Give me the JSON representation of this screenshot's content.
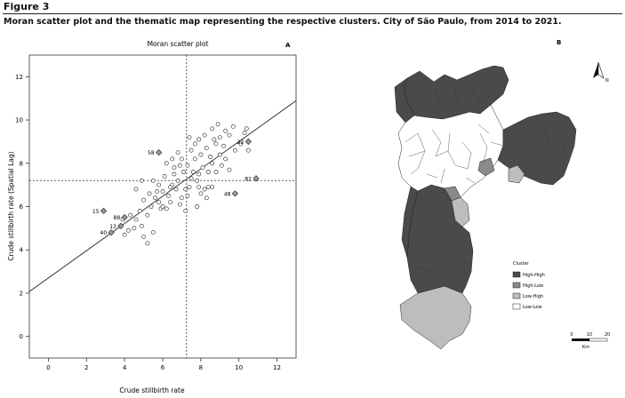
{
  "figure_label": "Figure 3",
  "caption": "Moran scatter plot and the thematic map representing the respective clusters. City of São Paulo, from 2014 to 2021.",
  "chart_data": [
    {
      "type": "scatter",
      "panel": "A",
      "title": "Moran scatter plot",
      "xlabel": "Crude stillbirth rate",
      "ylabel": "Crude stillbirth rate (Spatial Lag)",
      "xlim": [
        -1,
        13
      ],
      "ylim": [
        -1,
        13
      ],
      "xticks": [
        0,
        2,
        4,
        6,
        8,
        10,
        12
      ],
      "yticks": [
        0,
        2,
        4,
        6,
        8,
        10,
        12
      ],
      "mean_x": 7.25,
      "mean_y": 7.2,
      "regression": {
        "intercept": 2.7,
        "slope": 0.63
      },
      "grid": false,
      "labeled_points": [
        {
          "label": "58",
          "x": 5.8,
          "y": 8.5
        },
        {
          "label": "22",
          "x": 10.5,
          "y": 9.0
        },
        {
          "label": "82",
          "x": 10.9,
          "y": 7.3
        },
        {
          "label": "48",
          "x": 9.8,
          "y": 6.6
        },
        {
          "label": "15",
          "x": 2.9,
          "y": 5.8
        },
        {
          "label": "88",
          "x": 4.0,
          "y": 5.5
        },
        {
          "label": "13",
          "x": 3.8,
          "y": 5.1
        },
        {
          "label": "40",
          "x": 3.3,
          "y": 4.8
        }
      ],
      "points": [
        [
          4.0,
          4.7
        ],
        [
          4.2,
          4.9
        ],
        [
          4.5,
          5.0
        ],
        [
          3.9,
          5.4
        ],
        [
          4.3,
          5.6
        ],
        [
          4.6,
          5.4
        ],
        [
          4.9,
          5.1
        ],
        [
          5.0,
          4.6
        ],
        [
          5.2,
          4.3
        ],
        [
          5.5,
          4.8
        ],
        [
          4.8,
          5.8
        ],
        [
          5.2,
          5.6
        ],
        [
          5.4,
          6.0
        ],
        [
          5.0,
          6.3
        ],
        [
          4.6,
          6.8
        ],
        [
          4.9,
          7.2
        ],
        [
          5.3,
          6.6
        ],
        [
          5.6,
          6.4
        ],
        [
          5.8,
          6.2
        ],
        [
          5.9,
          5.9
        ],
        [
          6.2,
          5.9
        ],
        [
          6.4,
          6.2
        ],
        [
          6.3,
          6.5
        ],
        [
          6.0,
          6.7
        ],
        [
          5.8,
          7.0
        ],
        [
          5.5,
          7.2
        ],
        [
          6.1,
          7.4
        ],
        [
          6.5,
          7.0
        ],
        [
          6.7,
          6.8
        ],
        [
          6.8,
          7.2
        ],
        [
          6.9,
          6.1
        ],
        [
          7.0,
          6.4
        ],
        [
          7.2,
          6.8
        ],
        [
          7.3,
          6.5
        ],
        [
          7.4,
          6.9
        ],
        [
          7.5,
          7.3
        ],
        [
          7.6,
          7.6
        ],
        [
          7.8,
          7.2
        ],
        [
          7.9,
          6.9
        ],
        [
          8.0,
          6.6
        ],
        [
          8.2,
          6.8
        ],
        [
          8.4,
          6.9
        ],
        [
          7.1,
          7.6
        ],
        [
          7.3,
          7.9
        ],
        [
          7.0,
          8.2
        ],
        [
          6.8,
          8.5
        ],
        [
          7.5,
          8.6
        ],
        [
          7.7,
          8.9
        ],
        [
          8.0,
          8.4
        ],
        [
          8.3,
          8.7
        ],
        [
          8.5,
          8.3
        ],
        [
          8.8,
          8.9
        ],
        [
          9.0,
          9.2
        ],
        [
          9.2,
          8.8
        ],
        [
          9.3,
          9.5
        ],
        [
          8.9,
          9.8
        ],
        [
          8.6,
          9.6
        ],
        [
          9.5,
          9.3
        ],
        [
          9.7,
          9.7
        ],
        [
          8.2,
          9.3
        ],
        [
          7.9,
          9.1
        ],
        [
          8.1,
          7.8
        ],
        [
          8.4,
          7.6
        ],
        [
          8.6,
          8.0
        ],
        [
          8.8,
          7.6
        ],
        [
          9.1,
          7.9
        ],
        [
          9.3,
          8.2
        ],
        [
          9.5,
          7.7
        ],
        [
          9.8,
          8.6
        ],
        [
          10.1,
          8.9
        ],
        [
          10.3,
          9.4
        ],
        [
          10.5,
          8.6
        ],
        [
          6.2,
          8.0
        ],
        [
          6.5,
          8.2
        ],
        [
          6.6,
          7.8
        ],
        [
          7.8,
          6.0
        ],
        [
          8.6,
          6.9
        ],
        [
          6.6,
          7.5
        ],
        [
          10.4,
          9.6
        ],
        [
          9.0,
          8.4
        ],
        [
          7.2,
          5.8
        ],
        [
          6.0,
          6.0
        ],
        [
          6.9,
          7.9
        ],
        [
          7.7,
          8.2
        ],
        [
          8.3,
          6.4
        ],
        [
          5.7,
          6.7
        ],
        [
          6.4,
          6.9
        ],
        [
          7.9,
          7.5
        ],
        [
          7.4,
          9.2
        ],
        [
          8.7,
          9.1
        ]
      ]
    },
    {
      "type": "map",
      "panel": "B",
      "legend_title": "Cluster",
      "legend": [
        {
          "label": "High-High",
          "color": "#4a4a4a"
        },
        {
          "label": "High-Low",
          "color": "#8a8a8a"
        },
        {
          "label": "Low-High",
          "color": "#bdbdbd"
        },
        {
          "label": "Low-Low",
          "color": "#ffffff"
        }
      ],
      "north_label": "N",
      "scale_ticks": [
        "0",
        "10",
        "20"
      ],
      "scale_unit": "Km"
    }
  ]
}
